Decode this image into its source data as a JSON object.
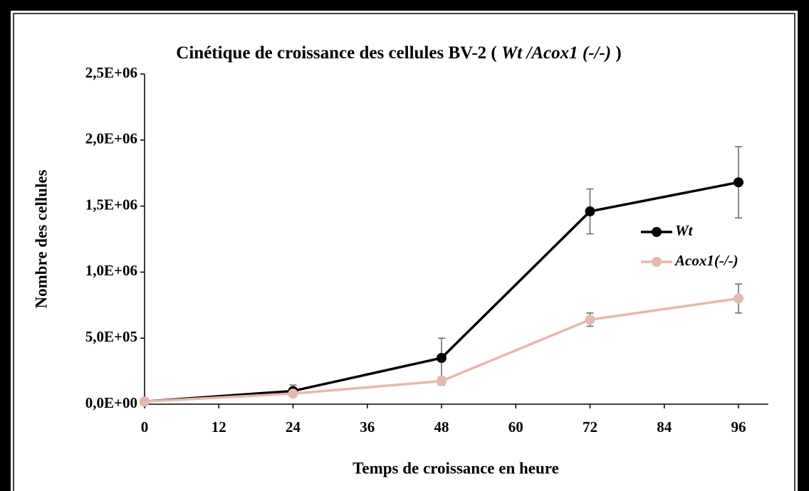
{
  "chart_data": {
    "type": "line",
    "title": [
      "Cinétique de croissance des cellules BV-2 ( ",
      "Wt /Acox1 (-/-)",
      " )"
    ],
    "x_label": "Temps de croissance en heure",
    "y_label": "Nombre des cellules",
    "x": [
      0,
      24,
      48,
      72,
      96
    ],
    "series": [
      {
        "name": "Wt",
        "color": "#000000",
        "values": [
          20000,
          100000,
          350000,
          1460000,
          1680000
        ],
        "errors": [
          10000,
          45000,
          150000,
          170000,
          270000
        ],
        "error_color": "#666666"
      },
      {
        "name": "Acox1(-/-)",
        "color": "#e6b8ae",
        "values": [
          20000,
          80000,
          175000,
          640000,
          800000
        ],
        "errors": [
          10000,
          20000,
          30000,
          50000,
          110000
        ],
        "error_color": "#666666"
      }
    ],
    "xlim": [
      0,
      100.8
    ],
    "ylim": [
      0,
      2500000
    ],
    "xticks": [
      0,
      12,
      24,
      36,
      48,
      60,
      72,
      84,
      96
    ],
    "yticks": [
      {
        "value": 0,
        "label": "0,0E+00"
      },
      {
        "value": 500000,
        "label": "5,0E+05"
      },
      {
        "value": 1000000,
        "label": "1,0E+06"
      },
      {
        "value": 1500000,
        "label": "1,5E+06"
      },
      {
        "value": 2000000,
        "label": "2,0E+06"
      },
      {
        "value": 2500000,
        "label": "2,5E+06"
      }
    ],
    "grid": false,
    "legend": "right"
  }
}
